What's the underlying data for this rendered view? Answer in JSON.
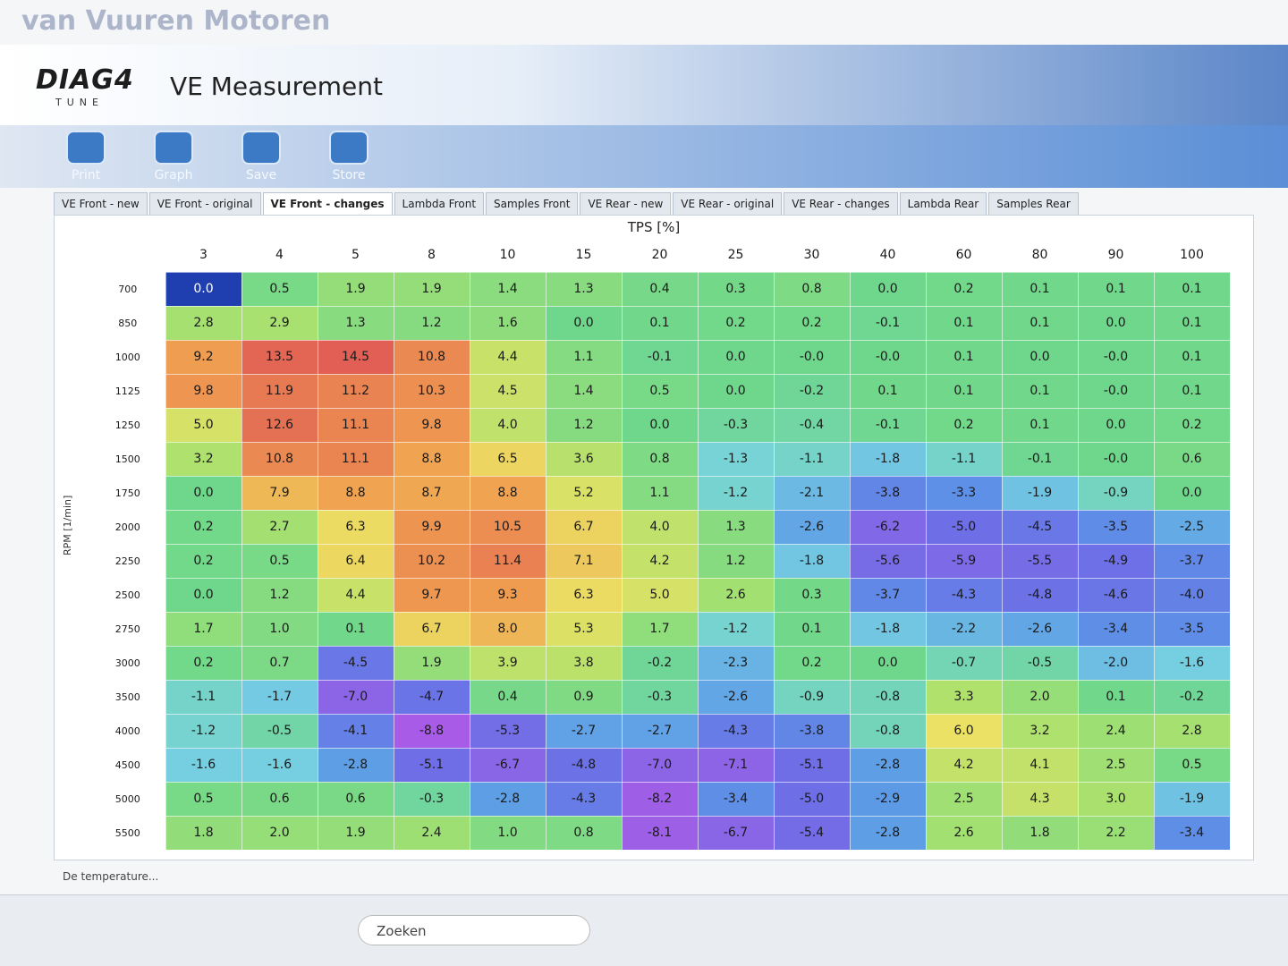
{
  "watermark": "van Vuuren Motoren",
  "header": {
    "logo": "DIAG4",
    "logo_sub": "TUNE",
    "title": "VE Measurement"
  },
  "toolbar": [
    "Print",
    "Graph",
    "Save",
    "Store"
  ],
  "tabs": [
    "VE Front - new",
    "VE Front - original",
    "VE Front - changes",
    "Lambda Front",
    "Samples Front",
    "VE Rear - new",
    "VE Rear - original",
    "VE Rear - changes",
    "Lambda Rear",
    "Samples Rear"
  ],
  "table": {
    "x_label": "TPS [%]",
    "y_label": "RPM [1/min]",
    "columns": [
      3,
      4,
      5,
      8,
      10,
      15,
      20,
      25,
      30,
      40,
      60,
      80,
      90,
      100
    ],
    "rows": [
      {
        "rpm": 700,
        "cells": [
          "0.0",
          "0.5",
          "1.9",
          "1.9",
          "1.4",
          "1.3",
          "0.4",
          "0.3",
          "0.8",
          "0.0",
          "0.2",
          "0.1",
          "0.1",
          "0.1"
        ]
      },
      {
        "rpm": 850,
        "cells": [
          "2.8",
          "2.9",
          "1.3",
          "1.2",
          "1.6",
          "0.0",
          "0.1",
          "0.2",
          "0.2",
          "-0.1",
          "0.1",
          "0.1",
          "0.0",
          "0.1"
        ]
      },
      {
        "rpm": 1000,
        "cells": [
          "9.2",
          "13.5",
          "14.5",
          "10.8",
          "4.4",
          "1.1",
          "-0.1",
          "0.0",
          "-0.0",
          "-0.0",
          "0.1",
          "0.0",
          "-0.0",
          "0.1"
        ]
      },
      {
        "rpm": 1125,
        "cells": [
          "9.8",
          "11.9",
          "11.2",
          "10.3",
          "4.5",
          "1.4",
          "0.5",
          "0.0",
          "-0.2",
          "0.1",
          "0.1",
          "0.1",
          "-0.0",
          "0.1"
        ]
      },
      {
        "rpm": 1250,
        "cells": [
          "5.0",
          "12.6",
          "11.1",
          "9.8",
          "4.0",
          "1.2",
          "0.0",
          "-0.3",
          "-0.4",
          "-0.1",
          "0.2",
          "0.1",
          "0.0",
          "0.2"
        ]
      },
      {
        "rpm": 1500,
        "cells": [
          "3.2",
          "10.8",
          "11.1",
          "8.8",
          "6.5",
          "3.6",
          "0.8",
          "-1.3",
          "-1.1",
          "-1.8",
          "-1.1",
          "-0.1",
          "-0.0",
          "0.6"
        ]
      },
      {
        "rpm": 1750,
        "cells": [
          "0.0",
          "7.9",
          "8.8",
          "8.7",
          "8.8",
          "5.2",
          "1.1",
          "-1.2",
          "-2.1",
          "-3.8",
          "-3.3",
          "-1.9",
          "-0.9",
          "0.0"
        ]
      },
      {
        "rpm": 2000,
        "cells": [
          "0.2",
          "2.7",
          "6.3",
          "9.9",
          "10.5",
          "6.7",
          "4.0",
          "1.3",
          "-2.6",
          "-6.2",
          "-5.0",
          "-4.5",
          "-3.5",
          "-2.5"
        ]
      },
      {
        "rpm": 2250,
        "cells": [
          "0.2",
          "0.5",
          "6.4",
          "10.2",
          "11.4",
          "7.1",
          "4.2",
          "1.2",
          "-1.8",
          "-5.6",
          "-5.9",
          "-5.5",
          "-4.9",
          "-3.7"
        ]
      },
      {
        "rpm": 2500,
        "cells": [
          "0.0",
          "1.2",
          "4.4",
          "9.7",
          "9.3",
          "6.3",
          "5.0",
          "2.6",
          "0.3",
          "-3.7",
          "-4.3",
          "-4.8",
          "-4.6",
          "-4.0"
        ]
      },
      {
        "rpm": 2750,
        "cells": [
          "1.7",
          "1.0",
          "0.1",
          "6.7",
          "8.0",
          "5.3",
          "1.7",
          "-1.2",
          "0.1",
          "-1.8",
          "-2.2",
          "-2.6",
          "-3.4",
          "-3.5"
        ]
      },
      {
        "rpm": 3000,
        "cells": [
          "0.2",
          "0.7",
          "-4.5",
          "1.9",
          "3.9",
          "3.8",
          "-0.2",
          "-2.3",
          "0.2",
          "0.0",
          "-0.7",
          "-0.5",
          "-2.0",
          "-1.6"
        ]
      },
      {
        "rpm": 3500,
        "cells": [
          "-1.1",
          "-1.7",
          "-7.0",
          "-4.7",
          "0.4",
          "0.9",
          "-0.3",
          "-2.6",
          "-0.9",
          "-0.8",
          "3.3",
          "2.0",
          "0.1",
          "-0.2"
        ]
      },
      {
        "rpm": 4000,
        "cells": [
          "-1.2",
          "-0.5",
          "-4.1",
          "-8.8",
          "-5.3",
          "-2.7",
          "-2.7",
          "-4.3",
          "-3.8",
          "-0.8",
          "6.0",
          "3.2",
          "2.4",
          "2.8"
        ]
      },
      {
        "rpm": 4500,
        "cells": [
          "-1.6",
          "-1.6",
          "-2.8",
          "-5.1",
          "-6.7",
          "-4.8",
          "-7.0",
          "-7.1",
          "-5.1",
          "-2.8",
          "4.2",
          "4.1",
          "2.5",
          "0.5"
        ]
      },
      {
        "rpm": 5000,
        "cells": [
          "0.5",
          "0.6",
          "0.6",
          "-0.3",
          "-2.8",
          "-4.3",
          "-8.2",
          "-3.4",
          "-5.0",
          "-2.9",
          "2.5",
          "4.3",
          "3.0",
          "-1.9"
        ]
      },
      {
        "rpm": 5500,
        "cells": [
          "1.8",
          "2.0",
          "1.9",
          "2.4",
          "1.0",
          "0.8",
          "-8.1",
          "-6.7",
          "-5.4",
          "-2.8",
          "2.6",
          "1.8",
          "2.2",
          "-3.4"
        ]
      }
    ]
  },
  "status": "De temperature...",
  "taskbar": {
    "search": "Zoeken"
  }
}
